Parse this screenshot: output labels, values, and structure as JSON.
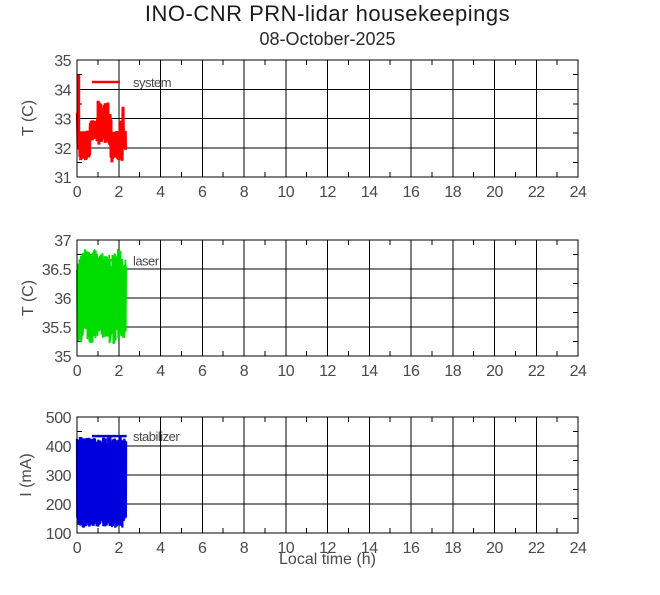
{
  "header": {
    "title": "INO-CNR PRN-lidar housekeepings",
    "subtitle": "08-October-2025"
  },
  "x_axis": {
    "label": "Local time (h)",
    "range": [
      0,
      24
    ],
    "ticks": [
      0,
      2,
      4,
      6,
      8,
      10,
      12,
      14,
      16,
      18,
      20,
      22,
      24
    ],
    "tick_labels": [
      "0",
      "2",
      "4",
      "6",
      "8",
      "10",
      "12",
      "14",
      "16",
      "18",
      "20",
      "22",
      "24"
    ],
    "minor_ticks": [
      1,
      3,
      5,
      7,
      9,
      11,
      13,
      15,
      17,
      19,
      21,
      23
    ]
  },
  "colors": {
    "system": "#ff0000",
    "laser": "#00dc00",
    "stabilizer": "#0000dd",
    "axis": "#000000",
    "tick_label": "#4a4a4a",
    "legend_label": "#3c3c3c"
  },
  "chart_data": [
    {
      "type": "line",
      "id": "system",
      "legend": "system",
      "ylabel": "T (C)",
      "ylim": [
        31,
        35
      ],
      "yticks": [
        31,
        32,
        33,
        34,
        35
      ],
      "ytick_labels": [
        "31",
        "32",
        "33",
        "34",
        "35"
      ],
      "yminor": [
        31.5,
        32.5,
        33.5,
        34.5
      ],
      "x_data_range": [
        0,
        2.33
      ],
      "legend_line": {
        "x0": 0.72,
        "x1": 2.06,
        "y": 34.25
      },
      "legend_text_x": 2.68,
      "envelope_note": "segments [x_start_h, x_end_h, min_C, max_C, n_samples]",
      "envelope": [
        [
          0.02,
          0.05,
          32.0,
          33.2,
          2
        ],
        [
          0.05,
          0.08,
          32.1,
          34.75,
          3
        ],
        [
          0.08,
          0.14,
          31.9,
          32.6,
          4
        ],
        [
          0.14,
          0.62,
          31.55,
          32.6,
          26
        ],
        [
          0.62,
          0.96,
          32.25,
          32.95,
          18
        ],
        [
          0.96,
          1.01,
          32.2,
          33.2,
          3
        ],
        [
          1.01,
          1.05,
          32.3,
          33.65,
          3
        ],
        [
          1.05,
          1.1,
          32.1,
          33.2,
          3
        ],
        [
          1.1,
          1.14,
          32.3,
          33.65,
          3
        ],
        [
          1.14,
          1.2,
          32.1,
          33.2,
          4
        ],
        [
          1.2,
          1.25,
          32.05,
          33.65,
          3
        ],
        [
          1.25,
          1.31,
          32.2,
          33.2,
          4
        ],
        [
          1.31,
          1.35,
          32.3,
          33.65,
          3
        ],
        [
          1.35,
          1.46,
          32.1,
          33.2,
          6
        ],
        [
          1.46,
          1.5,
          32.3,
          33.65,
          3
        ],
        [
          1.5,
          1.63,
          32.05,
          33.15,
          7
        ],
        [
          1.63,
          2.02,
          31.5,
          32.6,
          20
        ],
        [
          2.02,
          2.07,
          31.45,
          32.6,
          3
        ],
        [
          2.07,
          2.12,
          31.5,
          33.1,
          3
        ],
        [
          2.12,
          2.18,
          31.45,
          32.6,
          4
        ],
        [
          2.18,
          2.23,
          31.9,
          33.65,
          3
        ],
        [
          2.23,
          2.33,
          31.9,
          32.6,
          6
        ]
      ],
      "seed": 7,
      "jitter": 0.18,
      "stroke_width": 3
    },
    {
      "type": "line",
      "id": "laser",
      "legend": "laser",
      "ylabel": "T (C)",
      "ylim": [
        35,
        37
      ],
      "yticks": [
        35,
        35.5,
        36,
        36.5,
        37
      ],
      "ytick_labels": [
        "35",
        "35.5",
        "36",
        "36.5",
        "37"
      ],
      "yminor": [
        35.25,
        35.75,
        36.25,
        36.75
      ],
      "x_data_range": [
        0,
        2.35
      ],
      "legend_line": {
        "x0": 0.72,
        "x1": 2.06,
        "y": 36.65
      },
      "legend_text_x": 2.68,
      "envelope_note": "segments [x_start_h, x_end_h, min_C, max_C, n_samples]",
      "envelope": [
        [
          0.0,
          0.1,
          35.25,
          36.6,
          7
        ],
        [
          0.1,
          0.3,
          35.2,
          36.8,
          14
        ],
        [
          0.3,
          0.5,
          35.45,
          36.85,
          14
        ],
        [
          0.5,
          0.75,
          35.2,
          36.8,
          17
        ],
        [
          0.75,
          1.1,
          35.25,
          36.85,
          24
        ],
        [
          1.1,
          1.45,
          35.3,
          36.8,
          24
        ],
        [
          1.45,
          1.8,
          35.2,
          36.75,
          24
        ],
        [
          1.8,
          2.1,
          35.25,
          36.85,
          20
        ],
        [
          2.1,
          2.35,
          35.25,
          36.7,
          17
        ]
      ],
      "seed": 13,
      "jitter": 0.15,
      "stroke_width": 1.8
    },
    {
      "type": "line",
      "id": "stabilizer",
      "legend": "stabilizer",
      "ylabel": "I (mA)",
      "ylim": [
        100,
        500
      ],
      "yticks": [
        100,
        200,
        300,
        400,
        500
      ],
      "ytick_labels": [
        "100",
        "200",
        "300",
        "400",
        "500"
      ],
      "yminor": [
        150,
        250,
        350,
        450
      ],
      "x_data_range": [
        0,
        2.35
      ],
      "legend_line": {
        "x0": 0.72,
        "x1": 2.38,
        "y": 434
      },
      "legend_text_x": 2.68,
      "envelope_note": "segments [x_start_h, x_end_h, min_mA, max_mA, n_samples]",
      "envelope": [
        [
          0.0,
          0.15,
          125,
          430,
          18
        ],
        [
          0.15,
          0.8,
          118,
          432,
          80
        ],
        [
          0.8,
          1.6,
          120,
          430,
          100
        ],
        [
          1.6,
          2.2,
          118,
          432,
          75
        ],
        [
          2.2,
          2.35,
          125,
          428,
          18
        ]
      ],
      "seed": 101,
      "jitter": 0.12,
      "stroke_width": 2.2
    }
  ]
}
